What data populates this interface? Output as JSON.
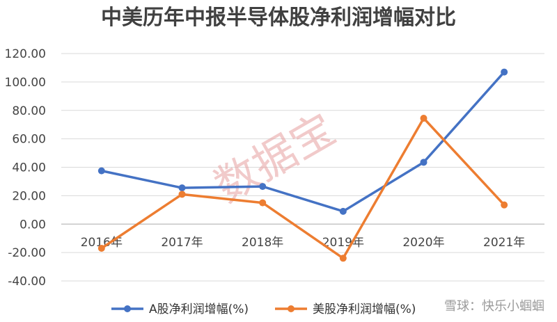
{
  "chart_data": {
    "type": "line",
    "title": "中美历年中报半导体股净利润增幅对比",
    "categories": [
      "2016年",
      "2017年",
      "2018年",
      "2019年",
      "2020年",
      "2021年"
    ],
    "ylim": [
      -40,
      120
    ],
    "yticks": [
      "120.00",
      "100.00",
      "80.00",
      "60.00",
      "40.00",
      "20.00",
      "0.00",
      "-20.00",
      "-40.00"
    ],
    "grid": true,
    "legend_position": "bottom",
    "series": [
      {
        "name": "A股净利润增幅(%)",
        "color": "#4472c4",
        "values": [
          37.5,
          25.5,
          26.5,
          9,
          43.5,
          107
        ]
      },
      {
        "name": "美股净利润增幅(%)",
        "color": "#ed7d31",
        "values": [
          -17,
          21,
          15,
          -24,
          74.5,
          13.5
        ]
      }
    ]
  },
  "watermark": "数据宝",
  "brand_watermark": "雪球：快乐小蝈蝈"
}
